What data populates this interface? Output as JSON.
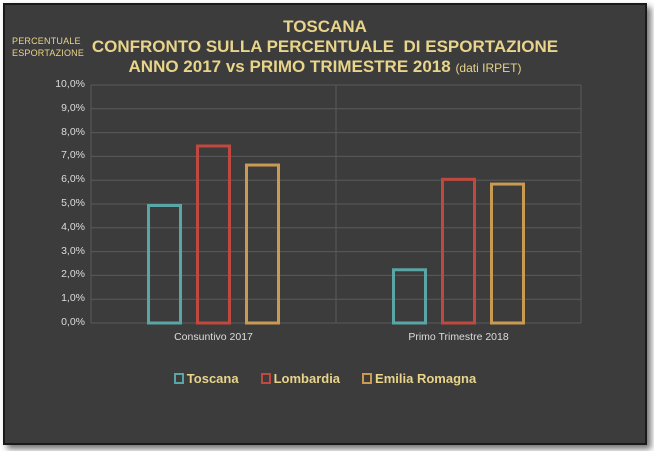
{
  "chart_data": {
    "type": "bar",
    "title": "TOSCANA",
    "subtitle_line1": "CONFRONTO SULLA PERCENTUALE  DI ESPORTAZIONE",
    "subtitle_line2": "ANNO 2017 vs PRIMO TRIMESTRE 2018",
    "subtitle_note": "(dati IRPET)",
    "ylabel_line1": "PERCENTUALE",
    "ylabel_line2": "ESPORTAZIONE",
    "categories": [
      "Consuntivo 2017",
      "Primo Trimestre 2018"
    ],
    "series": [
      {
        "name": "Toscana",
        "color": "#5aa6a6",
        "values": [
          5.0,
          2.3
        ]
      },
      {
        "name": "Lombardia",
        "color": "#c0483e",
        "values": [
          7.5,
          6.1
        ]
      },
      {
        "name": "Emilia Romagna",
        "color": "#c89a52",
        "values": [
          6.7,
          5.9
        ]
      }
    ],
    "ylim": [
      0,
      10
    ],
    "yticks": [
      "0,0%",
      "1,0%",
      "2,0%",
      "3,0%",
      "4,0%",
      "5,0%",
      "6,0%",
      "7,0%",
      "8,0%",
      "9,0%",
      "10,0%"
    ],
    "grid": true,
    "legend_position": "bottom"
  },
  "colors": {
    "background": "#3c3c3c",
    "title_text": "#e8d48a",
    "grid": "#5a5a5a",
    "axis_text": "#dcdcdc"
  }
}
